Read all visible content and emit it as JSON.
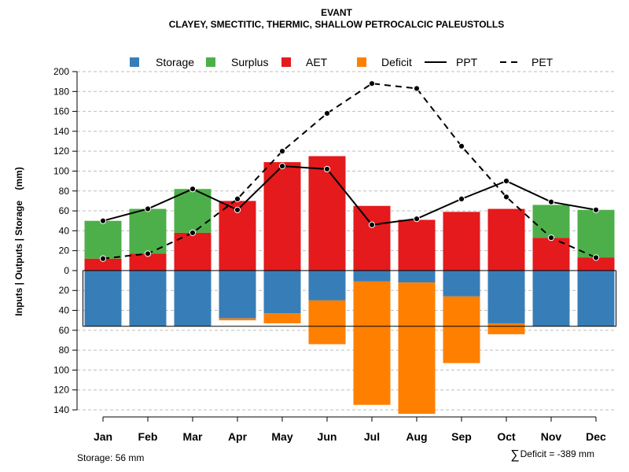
{
  "chart_data": {
    "type": "bar",
    "title": "EVANT",
    "subtitle": "CLAYEY, SMECTITIC, THERMIC, SHALLOW PETROCALCIC PALEUSTOLLS",
    "ylabel": "Inputs | Outputs | Storage    (mm)",
    "ylim": [
      -140,
      200
    ],
    "y_ticks": [
      200,
      180,
      160,
      140,
      120,
      100,
      80,
      60,
      40,
      20,
      0,
      -20,
      -40,
      -60,
      -80,
      -100,
      -120,
      -140
    ],
    "y_tick_labels": [
      "200",
      "180",
      "160",
      "140",
      "120",
      "100",
      "80",
      "60",
      "40",
      "20",
      "0",
      "20",
      "40",
      "60",
      "80",
      "100",
      "120",
      "140"
    ],
    "grid": true,
    "legend_position": "top",
    "categories": [
      "Jan",
      "Feb",
      "Mar",
      "Apr",
      "May",
      "Jun",
      "Jul",
      "Aug",
      "Sep",
      "Oct",
      "Nov",
      "Dec"
    ],
    "series": [
      {
        "name": "Storage",
        "kind": "bar",
        "color": "#377EB8",
        "values": [
          -56,
          -56,
          -56,
          -48,
          -43,
          -30,
          -11,
          -12,
          -26,
          -53,
          -56,
          -56
        ]
      },
      {
        "name": "Surplus",
        "kind": "bar",
        "color": "#4DAF4A",
        "values": [
          38,
          45,
          44,
          0,
          0,
          0,
          0,
          0,
          0,
          0,
          33,
          48
        ]
      },
      {
        "name": "AET",
        "kind": "bar",
        "color": "#E41A1C",
        "values": [
          12,
          17,
          38,
          70,
          109,
          115,
          65,
          51,
          59,
          62,
          33,
          13
        ]
      },
      {
        "name": "Deficit",
        "kind": "bar",
        "color": "#FF7F00",
        "values": [
          0,
          0,
          0,
          -2,
          -10,
          -44,
          -124,
          -132,
          -67,
          -11,
          0,
          0
        ]
      },
      {
        "name": "PPT",
        "kind": "line",
        "style": "solid",
        "color": "#000000",
        "values": [
          50,
          62,
          82,
          61,
          105,
          102,
          46,
          52,
          72,
          90,
          69,
          61
        ]
      },
      {
        "name": "PET",
        "kind": "line",
        "style": "dashed",
        "color": "#000000",
        "values": [
          12,
          17,
          38,
          72,
          120,
          158,
          188,
          183,
          125,
          74,
          33,
          13
        ]
      }
    ],
    "storage_capacity": -56
  },
  "footer": {
    "storage": "Storage: 56 mm",
    "deficit_symbol": "∑",
    "deficit": "Deficit = -389 mm"
  }
}
